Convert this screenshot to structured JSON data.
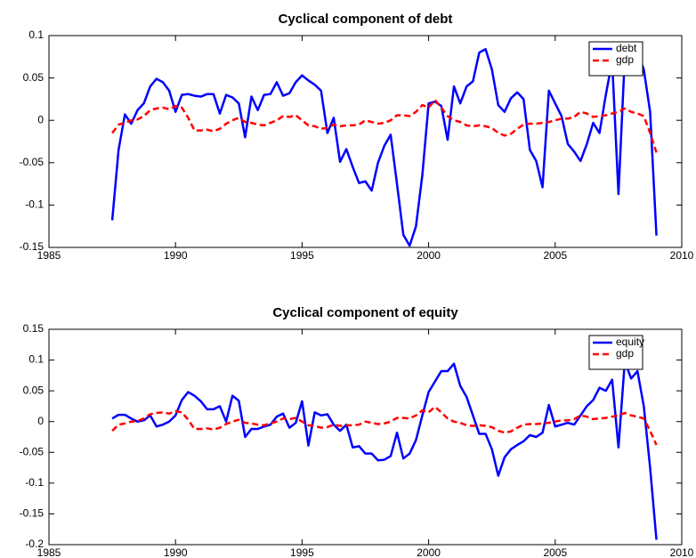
{
  "chart_data": [
    {
      "type": "line",
      "title": "Cyclical component of debt",
      "x": [
        1987.5,
        1987.75,
        1988,
        1988.25,
        1988.5,
        1988.75,
        1989,
        1989.25,
        1989.5,
        1989.75,
        1990,
        1990.25,
        1990.5,
        1990.75,
        1991,
        1991.25,
        1991.5,
        1991.75,
        1992,
        1992.25,
        1992.5,
        1992.75,
        1993,
        1993.25,
        1993.5,
        1993.75,
        1994,
        1994.25,
        1994.5,
        1994.75,
        1995,
        1995.25,
        1995.5,
        1995.75,
        1996,
        1996.25,
        1996.5,
        1996.75,
        1997,
        1997.25,
        1997.5,
        1997.75,
        1998,
        1998.25,
        1998.5,
        1998.75,
        1999,
        1999.25,
        1999.5,
        1999.75,
        2000,
        2000.25,
        2000.5,
        2000.75,
        2001,
        2001.25,
        2001.5,
        2001.75,
        2002,
        2002.25,
        2002.5,
        2002.75,
        2003,
        2003.25,
        2003.5,
        2003.75,
        2004,
        2004.25,
        2004.5,
        2004.75,
        2005,
        2005.25,
        2005.5,
        2005.75,
        2006,
        2006.25,
        2006.5,
        2006.75,
        2007,
        2007.25,
        2007.5,
        2007.75,
        2008,
        2008.25,
        2008.5,
        2008.75,
        2009
      ],
      "series": [
        {
          "name": "debt",
          "color": "#0000ff",
          "linestyle": "solid",
          "values": [
            -0.118,
            -0.035,
            0.007,
            -0.004,
            0.012,
            0.02,
            0.04,
            0.049,
            0.045,
            0.035,
            0.01,
            0.03,
            0.031,
            0.029,
            0.028,
            0.031,
            0.031,
            0.008,
            0.03,
            0.027,
            0.02,
            -0.02,
            0.028,
            0.012,
            0.03,
            0.031,
            0.045,
            0.029,
            0.032,
            0.045,
            0.053,
            0.047,
            0.042,
            0.035,
            -0.015,
            0.003,
            -0.049,
            -0.034,
            -0.055,
            -0.074,
            -0.072,
            -0.083,
            -0.05,
            -0.03,
            -0.017,
            -0.075,
            -0.135,
            -0.148,
            -0.125,
            -0.065,
            0.02,
            0.022,
            0.017,
            -0.023,
            0.04,
            0.02,
            0.04,
            0.046,
            0.08,
            0.084,
            0.06,
            0.018,
            0.01,
            0.026,
            0.033,
            0.025,
            -0.035,
            -0.048,
            -0.079,
            0.035,
            0.02,
            0.005,
            -0.028,
            -0.037,
            -0.048,
            -0.028,
            -0.003,
            -0.015,
            0.03,
            0.07,
            -0.087,
            0.075,
            0.065,
            0.08,
            0.06,
            0.01,
            -0.136
          ]
        },
        {
          "name": "gdp",
          "color": "#ff0000",
          "linestyle": "dashed",
          "values": [
            -0.015,
            -0.005,
            -0.003,
            0,
            0.001,
            0.005,
            0.012,
            0.014,
            0.015,
            0.013,
            0.017,
            0.015,
            0.003,
            -0.012,
            -0.012,
            -0.011,
            -0.013,
            -0.01,
            -0.004,
            0,
            0.003,
            -0.002,
            -0.003,
            -0.005,
            -0.006,
            -0.003,
            0,
            0.005,
            0.004,
            0.006,
            0,
            -0.006,
            -0.007,
            -0.01,
            -0.009,
            -0.005,
            -0.007,
            -0.006,
            -0.006,
            -0.005,
            0,
            -0.002,
            -0.004,
            -0.003,
            0,
            0.006,
            0.006,
            0.005,
            0.01,
            0.018,
            0.015,
            0.024,
            0.015,
            0.005,
            0,
            -0.002,
            -0.006,
            -0.007,
            -0.006,
            -0.007,
            -0.009,
            -0.015,
            -0.018,
            -0.016,
            -0.01,
            -0.005,
            -0.004,
            -0.004,
            -0.003,
            -0.002,
            0,
            0.002,
            0.002,
            0.004,
            0.01,
            0.008,
            0.004,
            0.005,
            0.006,
            0.008,
            0.01,
            0.014,
            0.01,
            0.008,
            0.005,
            -0.015,
            -0.038
          ]
        }
      ],
      "xlim": [
        1985,
        2010
      ],
      "xticks": [
        1985,
        1990,
        1995,
        2000,
        2005,
        2010
      ],
      "ylim": [
        -0.15,
        0.1
      ],
      "yticks": [
        -0.15,
        -0.1,
        -0.05,
        0,
        0.05,
        0.1
      ],
      "legend": "upper right"
    },
    {
      "type": "line",
      "title": "Cyclical component of equity",
      "x": [
        1987.5,
        1987.75,
        1988,
        1988.25,
        1988.5,
        1988.75,
        1989,
        1989.25,
        1989.5,
        1989.75,
        1990,
        1990.25,
        1990.5,
        1990.75,
        1991,
        1991.25,
        1991.5,
        1991.75,
        1992,
        1992.25,
        1992.5,
        1992.75,
        1993,
        1993.25,
        1993.5,
        1993.75,
        1994,
        1994.25,
        1994.5,
        1994.75,
        1995,
        1995.25,
        1995.5,
        1995.75,
        1996,
        1996.25,
        1996.5,
        1996.75,
        1997,
        1997.25,
        1997.5,
        1997.75,
        1998,
        1998.25,
        1998.5,
        1998.75,
        1999,
        1999.25,
        1999.5,
        1999.75,
        2000,
        2000.25,
        2000.5,
        2000.75,
        2001,
        2001.25,
        2001.5,
        2001.75,
        2002,
        2002.25,
        2002.5,
        2002.75,
        2003,
        2003.25,
        2003.5,
        2003.75,
        2004,
        2004.25,
        2004.5,
        2004.75,
        2005,
        2005.25,
        2005.5,
        2005.75,
        2006,
        2006.25,
        2006.5,
        2006.75,
        2007,
        2007.25,
        2007.5,
        2007.75,
        2008,
        2008.25,
        2008.5,
        2008.75,
        2009
      ],
      "series": [
        {
          "name": "equity",
          "color": "#0000ff",
          "linestyle": "solid",
          "values": [
            0.005,
            0.011,
            0.011,
            0.005,
            0,
            0.002,
            0.01,
            -0.008,
            -0.005,
            0,
            0.01,
            0.035,
            0.048,
            0.042,
            0.033,
            0.02,
            0.02,
            0.025,
            0,
            0.042,
            0.034,
            -0.025,
            -0.012,
            -0.012,
            -0.008,
            -0.005,
            0.008,
            0.013,
            -0.01,
            -0.002,
            0.033,
            -0.039,
            0.015,
            0.01,
            0.012,
            -0.005,
            -0.015,
            -0.005,
            -0.042,
            -0.04,
            -0.052,
            -0.052,
            -0.063,
            -0.062,
            -0.056,
            -0.018,
            -0.06,
            -0.052,
            -0.03,
            0.01,
            0.048,
            0.065,
            0.082,
            0.082,
            0.094,
            0.058,
            0.04,
            0.01,
            -0.02,
            -0.02,
            -0.045,
            -0.088,
            -0.058,
            -0.045,
            -0.038,
            -0.032,
            -0.022,
            -0.025,
            -0.018,
            0.027,
            -0.008,
            -0.005,
            -0.002,
            -0.005,
            0.01,
            0.025,
            0.035,
            0.055,
            0.05,
            0.068,
            -0.042,
            0.098,
            0.07,
            0.082,
            0.025,
            -0.075,
            -0.192
          ]
        },
        {
          "name": "gdp",
          "color": "#ff0000",
          "linestyle": "dashed",
          "values": [
            -0.015,
            -0.005,
            -0.003,
            0,
            0.001,
            0.005,
            0.012,
            0.014,
            0.015,
            0.013,
            0.017,
            0.015,
            0.003,
            -0.012,
            -0.012,
            -0.011,
            -0.013,
            -0.01,
            -0.004,
            0,
            0.003,
            -0.002,
            -0.003,
            -0.005,
            -0.006,
            -0.003,
            0,
            0.005,
            0.004,
            0.006,
            0,
            -0.006,
            -0.007,
            -0.01,
            -0.009,
            -0.005,
            -0.007,
            -0.006,
            -0.006,
            -0.005,
            0,
            -0.002,
            -0.004,
            -0.003,
            0,
            0.006,
            0.006,
            0.005,
            0.01,
            0.018,
            0.015,
            0.024,
            0.015,
            0.005,
            0,
            -0.002,
            -0.006,
            -0.007,
            -0.006,
            -0.007,
            -0.009,
            -0.015,
            -0.018,
            -0.016,
            -0.01,
            -0.005,
            -0.004,
            -0.004,
            -0.003,
            -0.002,
            0,
            0.002,
            0.002,
            0.004,
            0.01,
            0.008,
            0.004,
            0.005,
            0.006,
            0.008,
            0.01,
            0.014,
            0.01,
            0.008,
            0.005,
            -0.015,
            -0.038
          ]
        }
      ],
      "xlim": [
        1985,
        2010
      ],
      "xticks": [
        1985,
        1990,
        1995,
        2000,
        2005,
        2010
      ],
      "ylim": [
        -0.2,
        0.15
      ],
      "yticks": [
        -0.2,
        -0.15,
        -0.1,
        -0.05,
        0,
        0.05,
        0.1,
        0.15
      ],
      "legend": "upper right"
    }
  ]
}
